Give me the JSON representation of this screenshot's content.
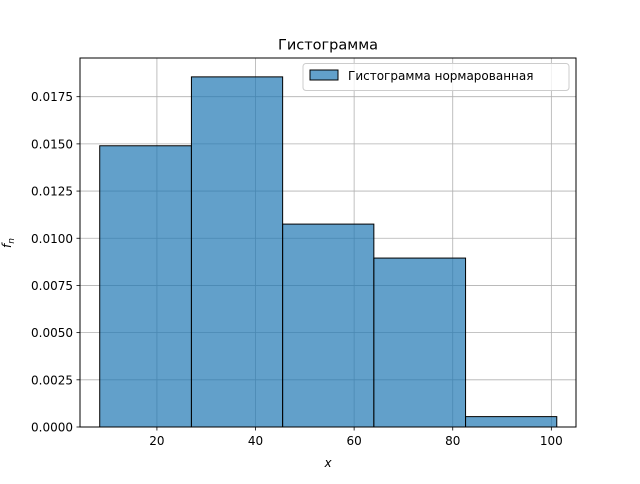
{
  "chart_data": {
    "type": "bar",
    "title": "Гистограмма",
    "xlabel": "x",
    "ylabel_main": "f",
    "ylabel_sub": "n",
    "xlim": [
      4.4,
      105.0
    ],
    "ylim": [
      0.0,
      0.01955
    ],
    "grid": true,
    "legend_position": "top-right",
    "x_ticks": [
      20,
      40,
      60,
      80,
      100
    ],
    "y_ticks": [
      0.0,
      0.0025,
      0.005,
      0.0075,
      0.01,
      0.0125,
      0.015,
      0.0175
    ],
    "y_tick_labels": [
      "0.0000",
      "0.0025",
      "0.0050",
      "0.0075",
      "0.0100",
      "0.0125",
      "0.0150",
      "0.0175"
    ],
    "series": [
      {
        "name": "Гистограмма нормарованная",
        "color": "#1f77b4",
        "edge_color": "#000000",
        "opacity": 0.7,
        "bins": [
          {
            "x0": 8.4,
            "x1": 27.0,
            "value": 0.0149
          },
          {
            "x0": 27.0,
            "x1": 45.5,
            "value": 0.01855
          },
          {
            "x0": 45.5,
            "x1": 64.0,
            "value": 0.01075
          },
          {
            "x0": 64.0,
            "x1": 82.6,
            "value": 0.00895
          },
          {
            "x0": 82.6,
            "x1": 101.1,
            "value": 0.00055
          }
        ]
      }
    ]
  }
}
